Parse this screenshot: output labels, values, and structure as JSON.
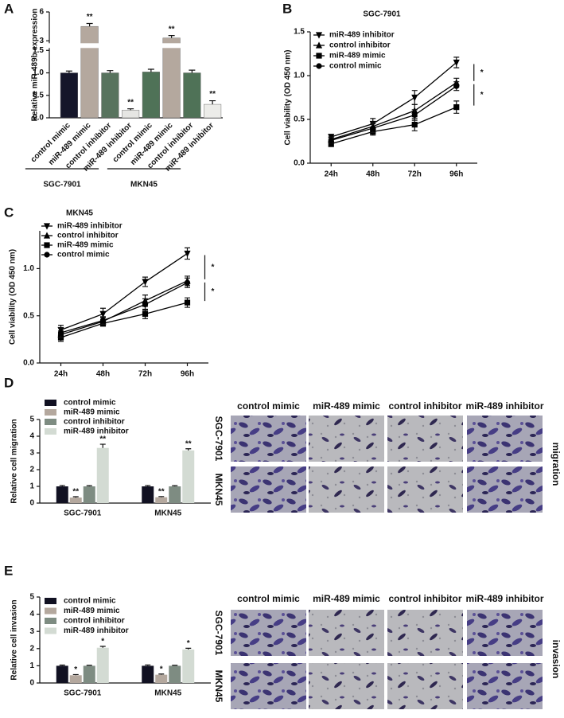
{
  "chart_data": [
    {
      "panel": "A",
      "type": "bar",
      "y_label": "Relative miR-489b expression",
      "categories": [
        "control mimic",
        "miR-489 mimic",
        "control inhibitor",
        "miR-489 inhibitor",
        "control mimic",
        "miR-489 mimic",
        "control inhibitor",
        "miR-489 inhibitor"
      ],
      "values": [
        1.0,
        4.5,
        1.0,
        0.17,
        1.02,
        3.3,
        1.0,
        0.3
      ],
      "errors": [
        0.04,
        0.3,
        0.05,
        0.03,
        0.06,
        0.25,
        0.06,
        0.08
      ],
      "colors": [
        "#15162a",
        "#b4a89e",
        "#58735e",
        "#e6e6e3",
        "#4f7257",
        "#b4a89e",
        "#4f7257",
        "#ecece9"
      ],
      "annotations": [
        {
          "index": 1,
          "text": "**"
        },
        {
          "index": 3,
          "text": "**"
        },
        {
          "index": 5,
          "text": "**"
        },
        {
          "index": 7,
          "text": "**"
        }
      ],
      "groups": [
        {
          "name": "SGC-7901",
          "start": 0,
          "end": 3
        },
        {
          "name": "MKN45",
          "start": 4,
          "end": 7
        }
      ],
      "ylim": [
        0,
        6
      ],
      "ybreak": [
        1.5,
        3
      ],
      "yticks": [
        {
          "value": 0,
          "label": "0.0"
        },
        0.5,
        {
          "value": 1,
          "label": "1.0"
        },
        1.5,
        3,
        6
      ]
    },
    {
      "panel": "B",
      "type": "line",
      "title": "SGC-7901",
      "y_label": "Cell viability (OD 450 nm)",
      "categories": [
        "24h",
        "48h",
        "72h",
        "96h"
      ],
      "series": [
        {
          "name": "miR-489 inhibitor",
          "marker": "triangle-down",
          "color": "#000000",
          "values": [
            0.3,
            0.45,
            0.75,
            1.15
          ],
          "errors": [
            0.03,
            0.06,
            0.08,
            0.06
          ]
        },
        {
          "name": "control inhibitor",
          "marker": "triangle-up",
          "color": "#000000",
          "values": [
            0.27,
            0.42,
            0.6,
            0.92
          ],
          "errors": [
            0.03,
            0.05,
            0.07,
            0.05
          ]
        },
        {
          "name": "miR-489 mimic",
          "marker": "square",
          "color": "#000000",
          "values": [
            0.22,
            0.36,
            0.44,
            0.64
          ],
          "errors": [
            0.03,
            0.04,
            0.07,
            0.07
          ]
        },
        {
          "name": "control mimic",
          "marker": "circle",
          "color": "#000000",
          "values": [
            0.26,
            0.4,
            0.55,
            0.88
          ],
          "errors": [
            0.03,
            0.05,
            0.06,
            0.05
          ]
        }
      ],
      "brackets": [
        {
          "from": 0,
          "to": 1,
          "text": "*"
        },
        {
          "from": 1,
          "to": 2,
          "text": "*"
        }
      ],
      "ylim": [
        0,
        1.5
      ],
      "yticks": [
        {
          "value": 0,
          "label": "0.0"
        },
        0.5,
        {
          "value": 1,
          "label": "1.0"
        },
        1.5
      ]
    },
    {
      "panel": "C",
      "type": "line",
      "title": "MKN45",
      "y_label": "Cell viability (OD 450 nm)",
      "categories": [
        "24h",
        "48h",
        "72h",
        "96h"
      ],
      "series": [
        {
          "name": "miR-489 inhibitor",
          "marker": "triangle-down",
          "color": "#000000",
          "values": [
            0.35,
            0.52,
            0.86,
            1.16
          ],
          "errors": [
            0.05,
            0.06,
            0.05,
            0.06
          ]
        },
        {
          "name": "control inhibitor",
          "marker": "triangle-up",
          "color": "#000000",
          "values": [
            0.3,
            0.44,
            0.66,
            0.87
          ],
          "errors": [
            0.04,
            0.04,
            0.06,
            0.05
          ]
        },
        {
          "name": "miR-489 mimic",
          "marker": "square",
          "color": "#000000",
          "values": [
            0.27,
            0.42,
            0.52,
            0.64
          ],
          "errors": [
            0.04,
            0.03,
            0.05,
            0.05
          ]
        },
        {
          "name": "control mimic",
          "marker": "circle",
          "color": "#000000",
          "values": [
            0.32,
            0.45,
            0.62,
            0.85
          ],
          "errors": [
            0.05,
            0.04,
            0.06,
            0.05
          ]
        }
      ],
      "brackets": [
        {
          "from": 0,
          "to": 1,
          "text": "*"
        },
        {
          "from": 1,
          "to": 2,
          "text": "*"
        }
      ],
      "ylim": [
        0,
        1.4
      ],
      "yticks": [
        {
          "value": 0,
          "label": "0.0"
        },
        0.5,
        {
          "value": 1,
          "label": "1.0"
        }
      ]
    },
    {
      "panel": "D",
      "type": "grouped-bar",
      "y_label": "Relative cell migration",
      "categories": [
        "SGC-7901",
        "MKN45"
      ],
      "series": [
        {
          "name": "control mimic",
          "color": "#111122",
          "values": [
            1.0,
            1.0
          ],
          "errors": [
            0.05,
            0.05
          ]
        },
        {
          "name": "miR-489 mimic",
          "color": "#b4a89e",
          "values": [
            0.33,
            0.35
          ],
          "errors": [
            0.05,
            0.04
          ],
          "annotation": "**"
        },
        {
          "name": "control inhibitor",
          "color": "#7e8c82",
          "values": [
            1.0,
            1.0
          ],
          "errors": [
            0.04,
            0.04
          ]
        },
        {
          "name": "miR-489 inhibitor",
          "color": "#d3dbd3",
          "values": [
            3.3,
            3.15
          ],
          "errors": [
            0.22,
            0.1
          ],
          "annotation": "**"
        }
      ],
      "ylim": [
        0,
        5
      ],
      "yticks": [
        0,
        1,
        2,
        3,
        4,
        5
      ]
    },
    {
      "panel": "E",
      "type": "grouped-bar",
      "y_label": "Relative cell invasion",
      "categories": [
        "SGC-7901",
        "MKN45"
      ],
      "series": [
        {
          "name": "control mimic",
          "color": "#111122",
          "values": [
            1.0,
            1.0
          ],
          "errors": [
            0.04,
            0.05
          ]
        },
        {
          "name": "miR-489 mimic",
          "color": "#b4a89e",
          "values": [
            0.45,
            0.48
          ],
          "errors": [
            0.04,
            0.04
          ],
          "annotation": "*"
        },
        {
          "name": "control inhibitor",
          "color": "#7e8c82",
          "values": [
            1.0,
            1.0
          ],
          "errors": [
            0.03,
            0.03
          ]
        },
        {
          "name": "miR-489 inhibitor",
          "color": "#d3dbd3",
          "values": [
            2.05,
            1.95
          ],
          "errors": [
            0.08,
            0.07
          ],
          "annotation": "*"
        }
      ],
      "ylim": [
        0,
        5
      ],
      "yticks": [
        0,
        1,
        2,
        3,
        4,
        5
      ]
    }
  ],
  "image_panels": [
    {
      "columns": [
        "control mimic",
        "miR-489 mimic",
        "control inhibitor",
        "miR-489 inhibitor"
      ],
      "rows": [
        "SGC-7901",
        "MKN45"
      ],
      "label": "migration"
    },
    {
      "columns": [
        "control mimic",
        "miR-489 mimic",
        "control inhibitor",
        "miR-489 inhibitor"
      ],
      "rows": [
        "SGC-7901",
        "MKN45"
      ],
      "label": "invasion"
    }
  ]
}
